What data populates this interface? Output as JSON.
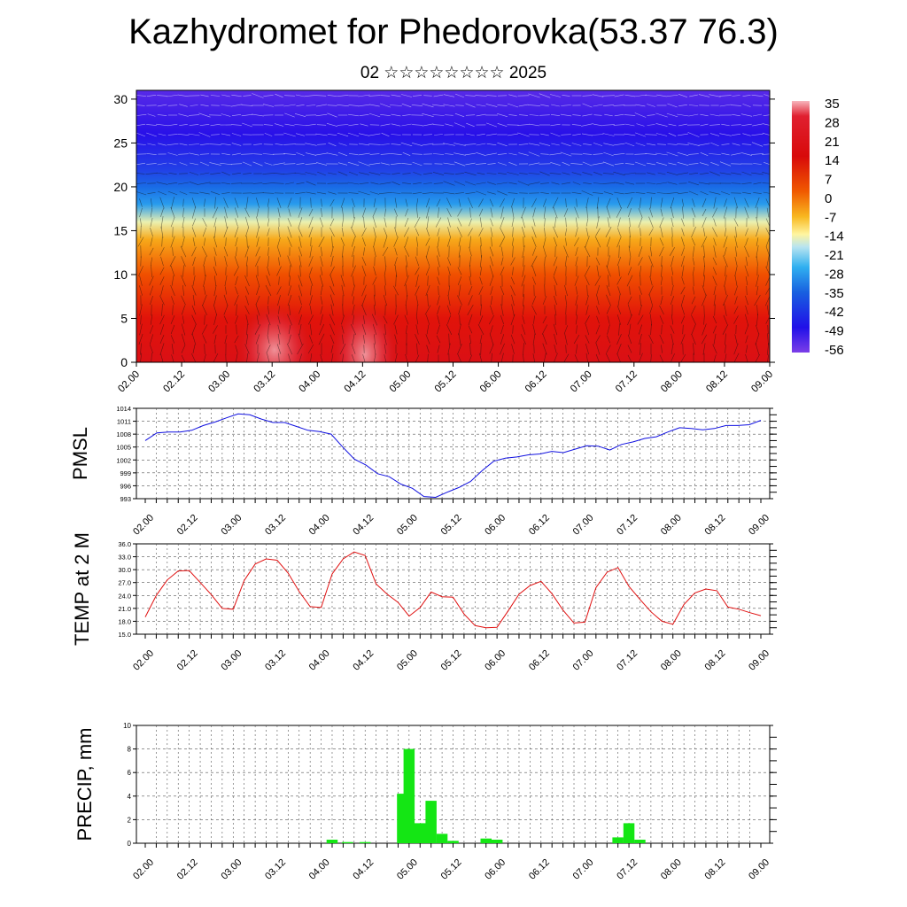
{
  "title": "Kazhydromet for Phedorovka(53.37 76.3)",
  "subtitle": "02 ☆☆☆☆☆☆☆☆ 2025",
  "time_ticks": [
    "02.00",
    "02.12",
    "03.00",
    "03.12",
    "04.00",
    "04.12",
    "05.00",
    "05.12",
    "06.00",
    "06.12",
    "07.00",
    "07.12",
    "08.00",
    "08.12",
    "09.00"
  ],
  "colors": {
    "pmsl_line": "#1010e0",
    "temp_line": "#e01010",
    "precip_bar": "#14e614",
    "grid": "#555555"
  },
  "chart_data": [
    {
      "type": "heatmap",
      "name": "temperature-wind cross section",
      "y_ticks": [
        "0",
        "5",
        "10",
        "15",
        "20",
        "25",
        "30"
      ],
      "ylim": [
        0,
        31
      ],
      "colorbar_labels": [
        "35",
        "28",
        "21",
        "14",
        "7",
        "0",
        "-7",
        "-14",
        "-21",
        "-28",
        "-35",
        "-42",
        "-49",
        "-56"
      ],
      "colorbar_range": [
        -63,
        42
      ],
      "layers": [
        {
          "height": 0,
          "temp": 30
        },
        {
          "height": 5,
          "temp": 22
        },
        {
          "height": 10,
          "temp": 14
        },
        {
          "height": 14,
          "temp": 2
        },
        {
          "height": 16,
          "temp": -14
        },
        {
          "height": 18,
          "temp": -28
        },
        {
          "height": 20,
          "temp": -36
        },
        {
          "height": 22,
          "temp": -48
        },
        {
          "height": 26,
          "temp": -56
        },
        {
          "height": 31,
          "temp": -60
        }
      ]
    },
    {
      "type": "line",
      "ylabel": "PMSL",
      "ylim": [
        993,
        1014
      ],
      "y_ticks": [
        "1014",
        "1011",
        "1008",
        "1005",
        "1002",
        "999",
        "996",
        "993"
      ],
      "series": [
        {
          "values": [
            1006.5,
            1008.3,
            1008.5,
            1008.5,
            1008.9,
            1010.0,
            1010.8,
            1011.8,
            1012.7,
            1012.5,
            1011.5,
            1010.7,
            1010.7,
            1009.8,
            1008.9,
            1008.6,
            1008.0,
            1005.0,
            1002.2,
            1000.8,
            998.8,
            998.1,
            996.4,
            995.4,
            993.5,
            993.3,
            994.5,
            995.6,
            997.0,
            999.5,
            1001.7,
            1002.4,
            1002.7,
            1003.2,
            1003.4,
            1004.0,
            1003.7,
            1004.5,
            1005.3,
            1005.2,
            1004.3,
            1005.6,
            1006.2,
            1007.0,
            1007.4,
            1008.5,
            1009.5,
            1009.3,
            1009.0,
            1009.3,
            1010.0,
            1010.0,
            1010.2,
            1011.2
          ]
        }
      ]
    },
    {
      "type": "line",
      "ylabel": "TEMP at 2 M",
      "ylim": [
        15,
        36
      ],
      "y_ticks": [
        "36.0",
        "33.0",
        "30.0",
        "27.0",
        "24.0",
        "21.0",
        "18.0",
        "15.0"
      ],
      "series": [
        {
          "values": [
            19.0,
            24.0,
            27.6,
            29.7,
            29.8,
            27.0,
            24.2,
            21.0,
            20.8,
            27.5,
            31.3,
            32.5,
            32.2,
            29.2,
            24.9,
            21.4,
            21.2,
            29.0,
            32.5,
            34.1,
            33.3,
            26.7,
            24.3,
            22.4,
            19.2,
            21.2,
            24.8,
            23.7,
            23.6,
            19.7,
            17.0,
            16.5,
            16.6,
            20.4,
            24.3,
            26.3,
            27.3,
            24.4,
            20.6,
            17.6,
            17.8,
            25.8,
            29.4,
            30.5,
            26.1,
            23.1,
            20.2,
            18.0,
            17.3,
            21.9,
            24.6,
            25.5,
            25.1,
            21.3,
            20.8,
            20.0,
            19.3
          ]
        }
      ]
    },
    {
      "type": "bar",
      "ylabel": "PRECIP, mm",
      "ylim": [
        0,
        10
      ],
      "y_ticks": [
        "10",
        "8",
        "6",
        "4",
        "2",
        "0"
      ],
      "bars": [
        {
          "t": 4.125,
          "v": 0.3
        },
        {
          "t": 4.3,
          "v": 0.1
        },
        {
          "t": 4.5,
          "v": 0.1
        },
        {
          "t": 4.925,
          "v": 4.2
        },
        {
          "t": 5.0,
          "v": 8.0
        },
        {
          "t": 5.125,
          "v": 1.7
        },
        {
          "t": 5.25,
          "v": 3.6
        },
        {
          "t": 5.375,
          "v": 0.8
        },
        {
          "t": 5.5,
          "v": 0.2
        },
        {
          "t": 5.875,
          "v": 0.4
        },
        {
          "t": 6.0,
          "v": 0.3
        },
        {
          "t": 7.375,
          "v": 0.5
        },
        {
          "t": 7.5,
          "v": 1.7
        },
        {
          "t": 7.625,
          "v": 0.3
        }
      ]
    }
  ]
}
